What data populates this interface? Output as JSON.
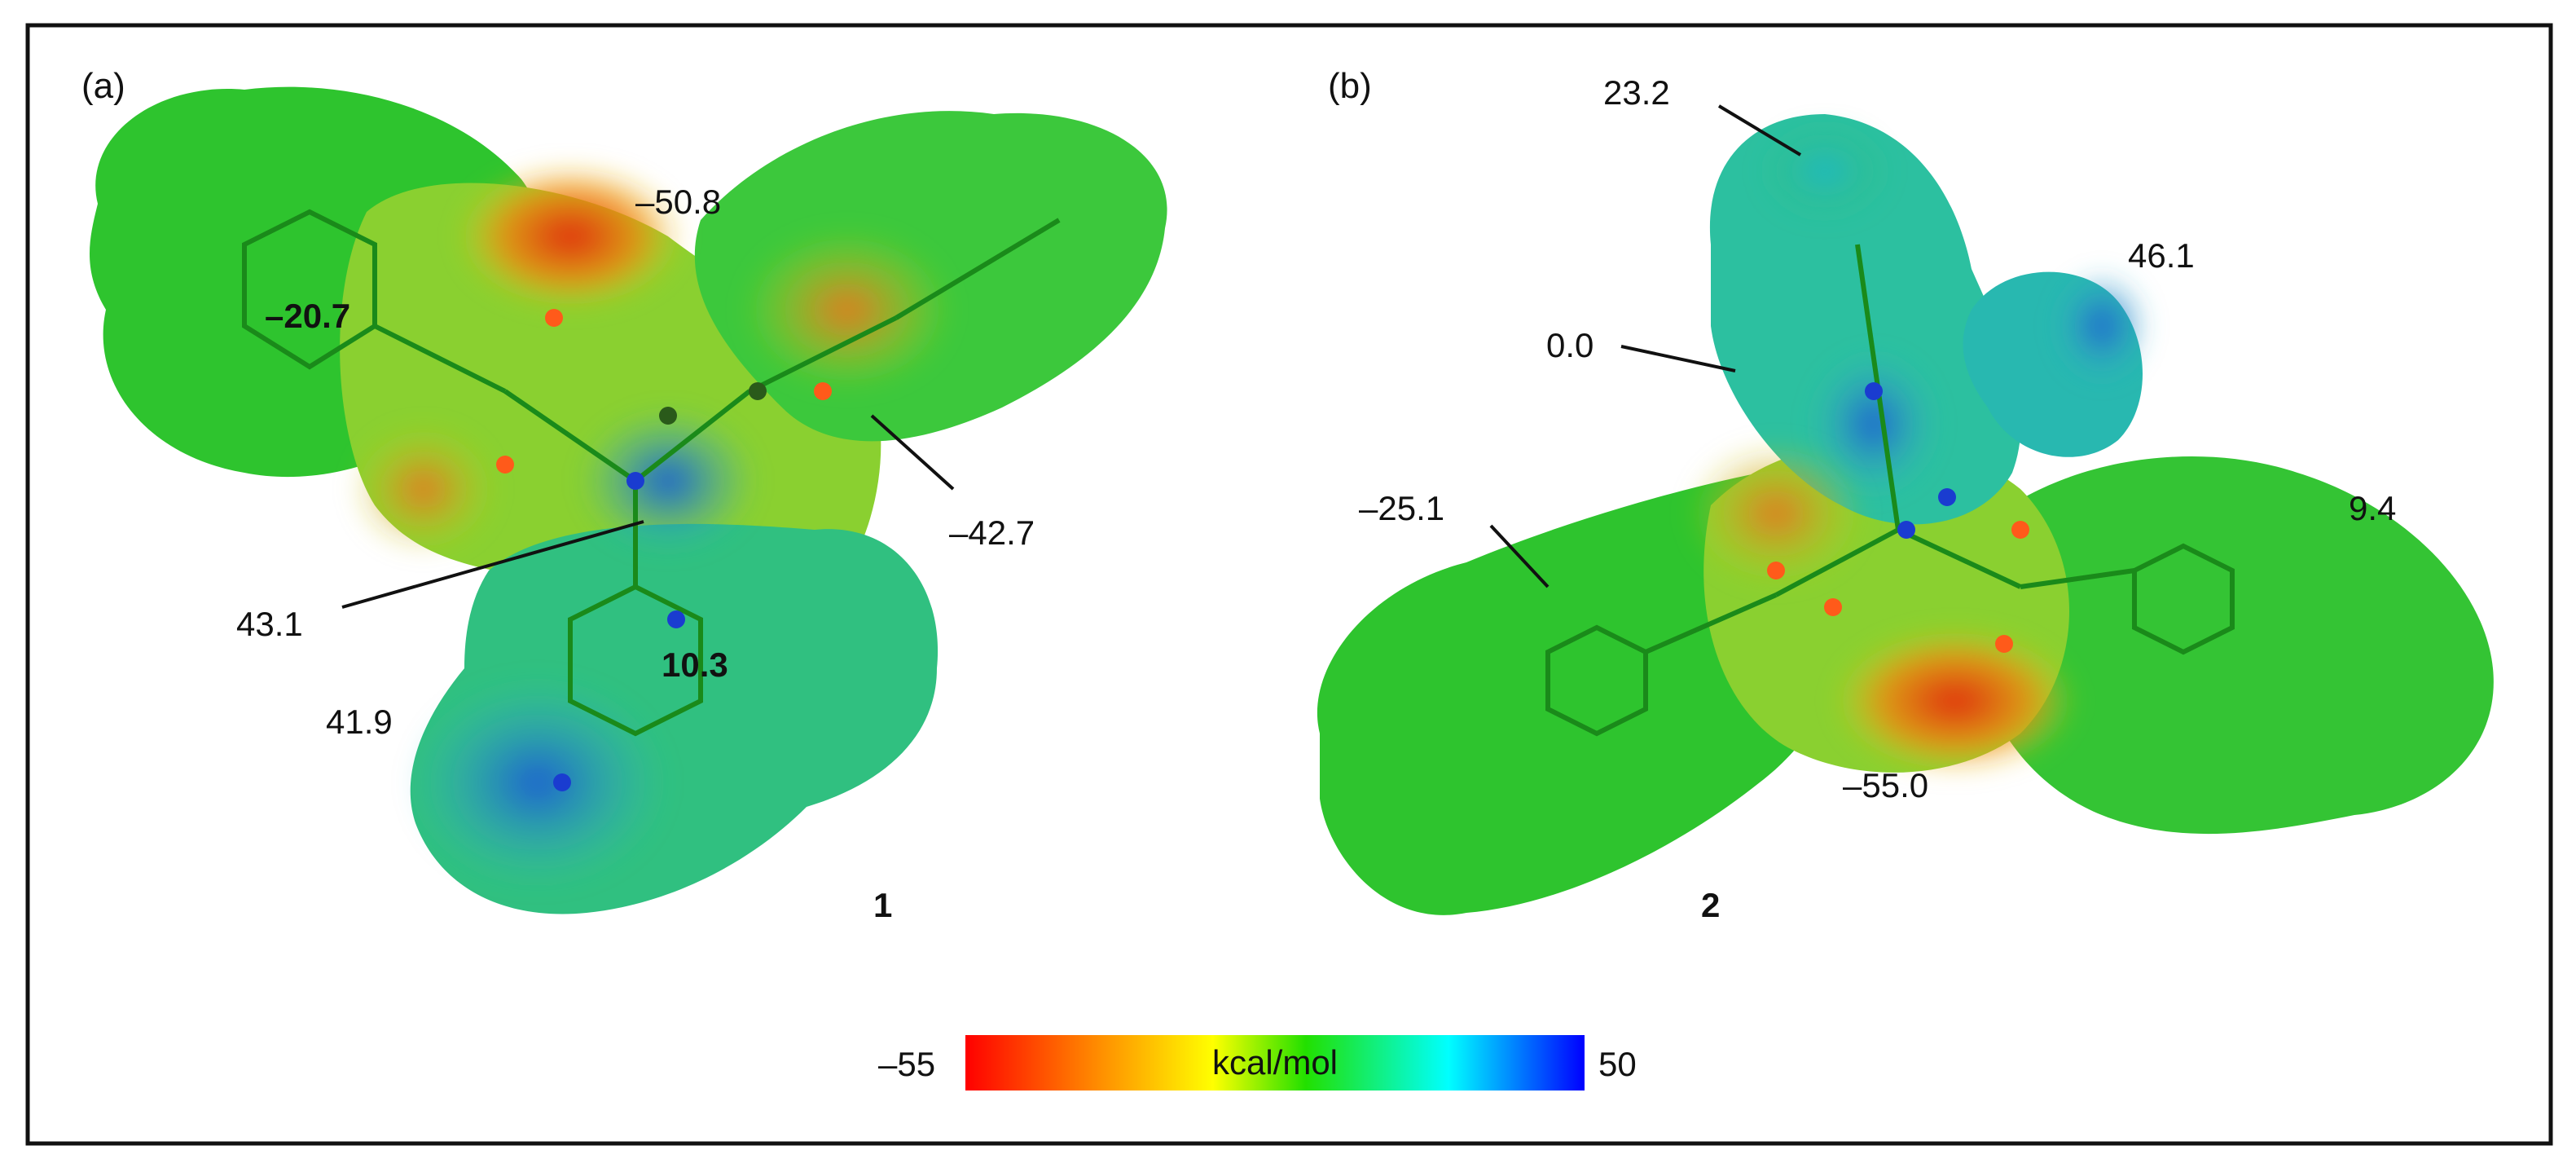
{
  "panels": [
    {
      "panel_label": "(a)",
      "compound_number": "1",
      "values": {
        "carbonyl_o": "–50.8",
        "phenyl_ring": "–20.7",
        "acyl_o": "–42.7",
        "nh": "43.1",
        "nh2": "41.9",
        "pyridine_ring": "10.3"
      }
    },
    {
      "panel_label": "(b)",
      "compound_number": "2",
      "values": {
        "top_pyridine": "23.2",
        "right_h": "46.1",
        "ring_center": "0.0",
        "left_ring": "–25.1",
        "right_ring": "9.4",
        "bottom_o": "–55.0"
      }
    }
  ],
  "color_bar": {
    "min_label": "–55",
    "max_label": "50",
    "unit": "kcal/mol",
    "colors": [
      "#ff0000",
      "#ff8c00",
      "#ffff00",
      "#00ff00",
      "#00ffff",
      "#0000ff"
    ]
  }
}
